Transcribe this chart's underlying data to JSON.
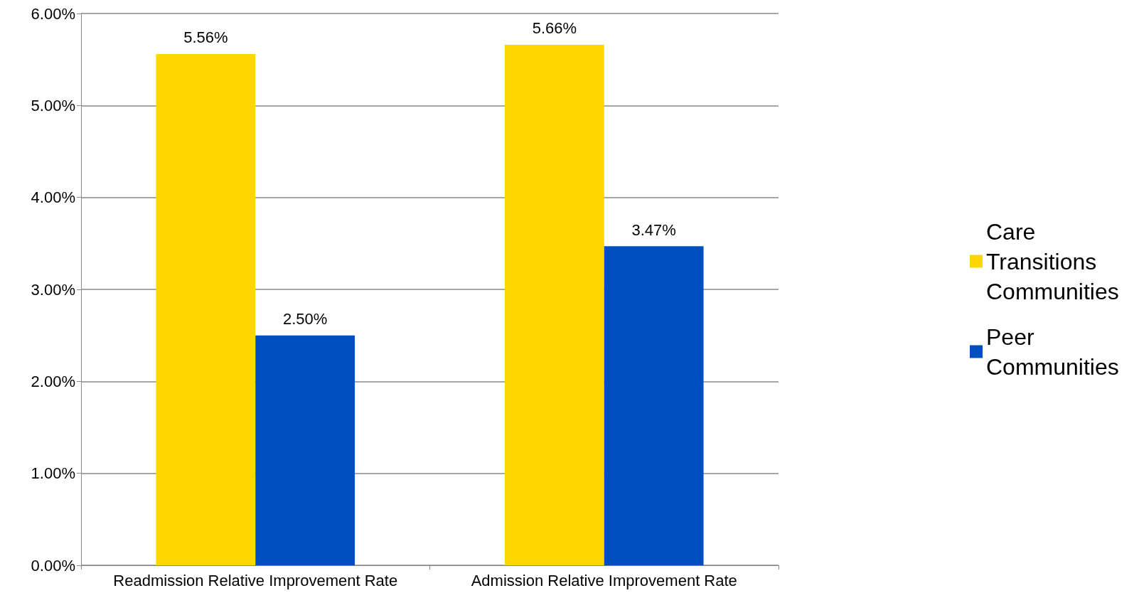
{
  "chart_data": {
    "type": "bar",
    "categories": [
      "Readmission Relative Improvement Rate",
      "Admission Relative Improvement Rate"
    ],
    "series": [
      {
        "name": "Care Transitions Communities",
        "color": "#ffd700",
        "values": [
          5.56,
          5.66
        ],
        "value_labels": [
          "5.56%",
          "5.66%"
        ]
      },
      {
        "name": "Peer Communities",
        "color": "#004fc0",
        "values": [
          2.5,
          3.47
        ],
        "value_labels": [
          "2.50%",
          "3.47%"
        ]
      }
    ],
    "ylim": [
      0,
      6
    ],
    "yticks": [
      {
        "value": 0,
        "label": "0.00%"
      },
      {
        "value": 1,
        "label": "1.00%"
      },
      {
        "value": 2,
        "label": "2.00%"
      },
      {
        "value": 3,
        "label": "3.00%"
      },
      {
        "value": 4,
        "label": "4.00%"
      },
      {
        "value": 5,
        "label": "5.00%"
      },
      {
        "value": 6,
        "label": "6.00%"
      }
    ],
    "grid": "y",
    "legend": "right"
  }
}
